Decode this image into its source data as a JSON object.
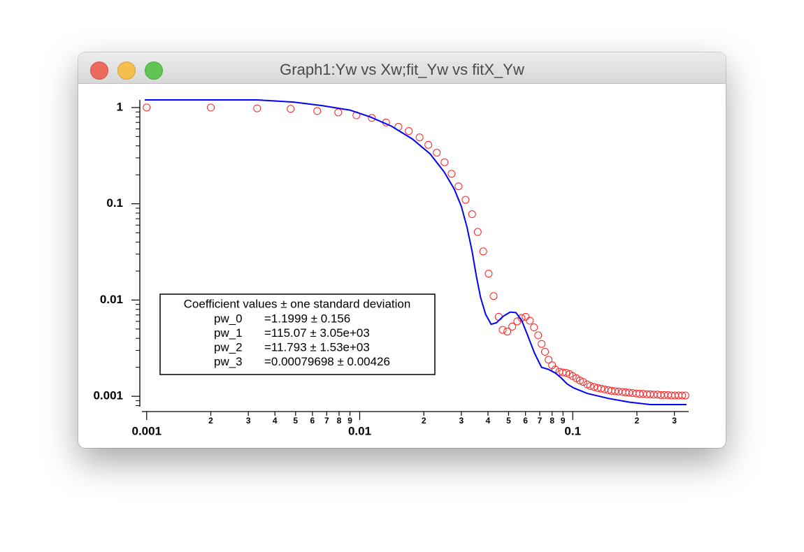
{
  "window": {
    "title": "Graph1:Yw vs Xw;fit_Yw vs fitX_Yw"
  },
  "chart_data": {
    "type": "scatter",
    "xscale": "log",
    "yscale": "log",
    "xlim": [
      0.00095,
      0.35
    ],
    "ylim": [
      0.00078,
      1.2
    ],
    "xticks": [
      0.001,
      {
        "value": 0.002,
        "label": "2"
      },
      {
        "value": 0.003,
        "label": "3"
      },
      {
        "value": 0.004,
        "label": "4"
      },
      {
        "value": 0.005,
        "label": "5"
      },
      {
        "value": 0.006,
        "label": "6"
      },
      {
        "value": 0.007,
        "label": "7"
      },
      {
        "value": 0.008,
        "label": "8"
      },
      {
        "value": 0.009,
        "label": "9"
      },
      0.01,
      {
        "value": 0.02,
        "label": "2"
      },
      {
        "value": 0.03,
        "label": "3"
      },
      {
        "value": 0.04,
        "label": "4"
      },
      {
        "value": 0.05,
        "label": "5"
      },
      {
        "value": 0.06,
        "label": "6"
      },
      {
        "value": 0.07,
        "label": "7"
      },
      {
        "value": 0.08,
        "label": "8"
      },
      {
        "value": 0.09,
        "label": "9"
      },
      0.1,
      {
        "value": 0.2,
        "label": "2"
      },
      {
        "value": 0.3,
        "label": "3"
      }
    ],
    "yticks": [
      1,
      0.1,
      0.01,
      0.001
    ],
    "series": [
      {
        "style": "circles",
        "color": "#ff2020",
        "x": [
          0.001,
          0.002,
          0.0033,
          0.00474,
          0.00632,
          0.00793,
          0.00965,
          0.0114,
          0.0133,
          0.0152,
          0.017,
          0.0191,
          0.021,
          0.023,
          0.025,
          0.027,
          0.0291,
          0.0314,
          0.0337,
          0.0358,
          0.038,
          0.0403,
          0.0425,
          0.0449,
          0.0469,
          0.0493,
          0.052,
          0.0549,
          0.0575,
          0.0601,
          0.0629,
          0.0658,
          0.0688,
          0.0714,
          0.0741,
          0.077,
          0.08,
          0.0828,
          0.0865,
          0.0897,
          0.0931,
          0.0967,
          0.1,
          0.104,
          0.108,
          0.112,
          0.117,
          0.121,
          0.126,
          0.131,
          0.136,
          0.141,
          0.147,
          0.152,
          0.158,
          0.164,
          0.171,
          0.177,
          0.184,
          0.191,
          0.199,
          0.206,
          0.214,
          0.223,
          0.231,
          0.24,
          0.25,
          0.259,
          0.269,
          0.28,
          0.291,
          0.302,
          0.314,
          0.326,
          0.338
        ],
        "values": [
          1.0,
          1.0,
          0.98,
          0.97,
          0.92,
          0.89,
          0.83,
          0.78,
          0.7,
          0.63,
          0.57,
          0.49,
          0.41,
          0.34,
          0.27,
          0.205,
          0.152,
          0.11,
          0.078,
          0.051,
          0.032,
          0.0188,
          0.011,
          0.0067,
          0.0049,
          0.0047,
          0.0053,
          0.006,
          0.0065,
          0.0067,
          0.0061,
          0.0052,
          0.0043,
          0.0035,
          0.0029,
          0.0024,
          0.0021,
          0.0019,
          0.0018,
          0.00177,
          0.00175,
          0.0017,
          0.00162,
          0.00154,
          0.00146,
          0.00141,
          0.00133,
          0.00128,
          0.00125,
          0.00122,
          0.0012,
          0.00118,
          0.00116,
          0.00114,
          0.00113,
          0.00112,
          0.00111,
          0.0011,
          0.00109,
          0.00108,
          0.00107,
          0.00106,
          0.00106,
          0.00105,
          0.00105,
          0.00104,
          0.00104,
          0.00103,
          0.00103,
          0.00103,
          0.00102,
          0.00102,
          0.00102,
          0.00102,
          0.00102
        ]
      },
      {
        "style": "line",
        "color": "#0000ff",
        "x": [
          0.00098,
          0.0033,
          0.0049,
          0.0066,
          0.009,
          0.0112,
          0.0141,
          0.0177,
          0.0214,
          0.0249,
          0.0278,
          0.03,
          0.0319,
          0.0337,
          0.0353,
          0.0369,
          0.039,
          0.0414,
          0.0438,
          0.0472,
          0.0509,
          0.0541,
          0.0575,
          0.0614,
          0.0662,
          0.0714,
          0.077,
          0.0828,
          0.088,
          0.0942,
          0.101,
          0.117,
          0.147,
          0.184,
          0.231,
          0.342
        ],
        "values": [
          1.2,
          1.2,
          1.14,
          1.05,
          0.94,
          0.8,
          0.64,
          0.47,
          0.33,
          0.215,
          0.142,
          0.094,
          0.057,
          0.032,
          0.0176,
          0.0107,
          0.0071,
          0.0056,
          0.0058,
          0.0068,
          0.0075,
          0.0074,
          0.0062,
          0.0043,
          0.0028,
          0.002,
          0.0019,
          0.00175,
          0.00156,
          0.00134,
          0.00122,
          0.00107,
          0.00095,
          0.00087,
          0.00082,
          0.00082
        ]
      }
    ],
    "annotation": {
      "title": "Coefficient values ± one standard deviation",
      "rows": [
        [
          "pw_0",
          "=1.1999 ± 0.156"
        ],
        [
          "pw_1",
          "=115.07 ± 3.05e+03"
        ],
        [
          "pw_2",
          "=11.793 ± 1.53e+03"
        ],
        [
          "pw_3",
          "=0.00079698 ± 0.00426"
        ]
      ]
    }
  }
}
